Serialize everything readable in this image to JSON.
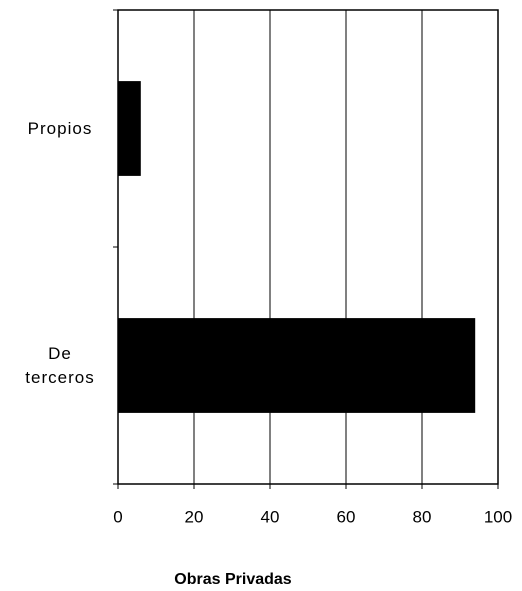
{
  "chart_data": {
    "type": "hbar",
    "x_label": "Obras Privadas",
    "categories": [
      "Propios",
      "De terceros"
    ],
    "values": [
      6,
      94
    ],
    "color": "#000000",
    "xlim": [
      0,
      100
    ],
    "xticks": [
      0,
      20,
      40,
      60,
      80,
      100
    ],
    "grid": true
  }
}
